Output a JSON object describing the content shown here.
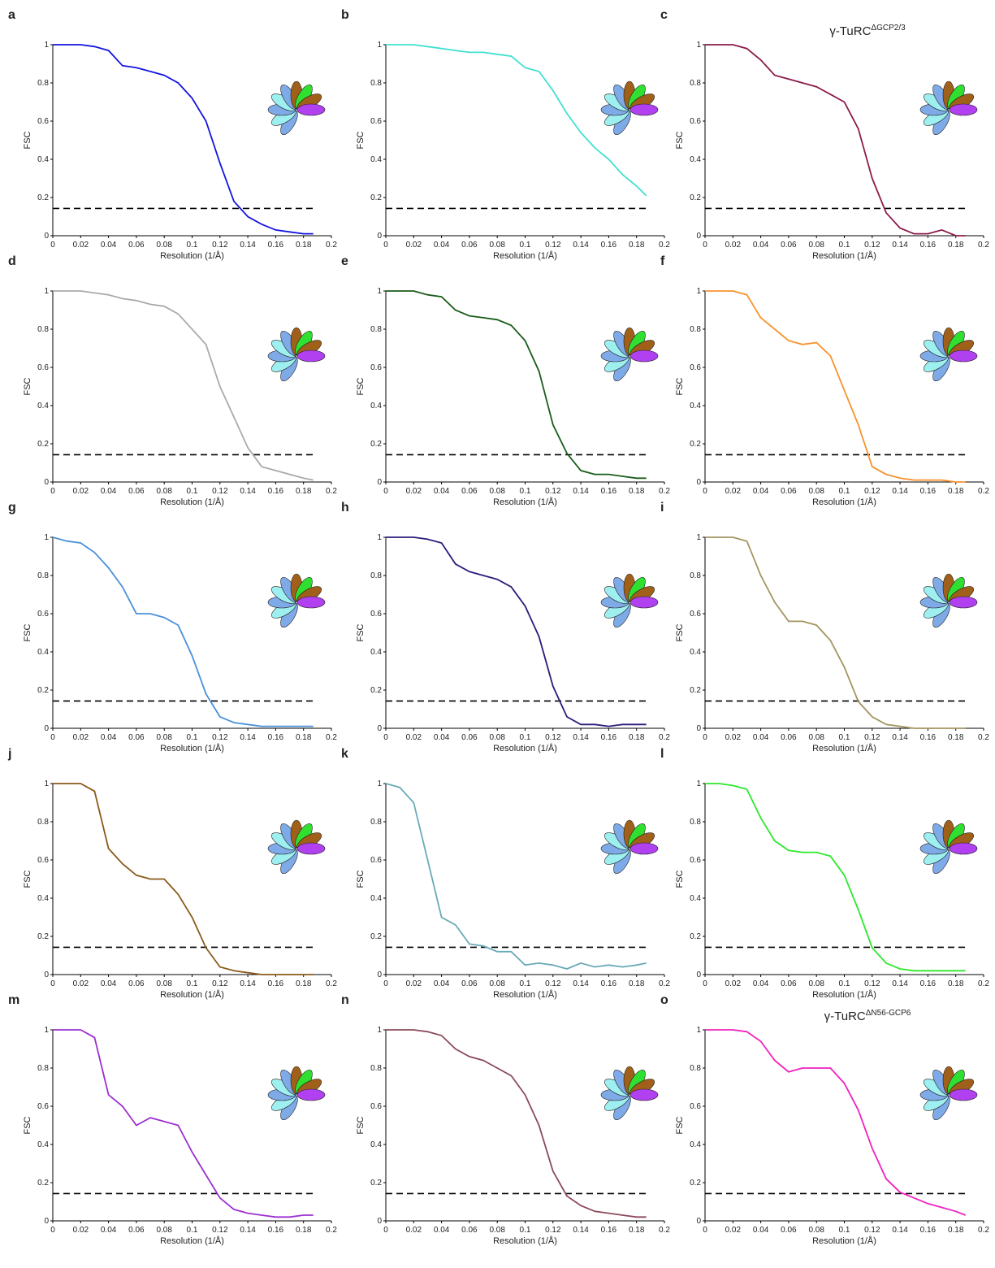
{
  "chart_data": [
    {
      "type": "line",
      "panel": "a",
      "ylabel": "FSC",
      "xlabel": "Resolution (1/Å)",
      "xlim": [
        0,
        0.2
      ],
      "ylim": [
        0,
        1
      ],
      "xticks": [
        0,
        0.02,
        0.04,
        0.06,
        0.08,
        0.1,
        0.12,
        0.14,
        0.16,
        0.18,
        0.2
      ],
      "yticks": [
        0,
        0.2,
        0.4,
        0.6,
        0.8,
        1
      ],
      "hline": 0.143,
      "color": "#1414e0",
      "x": [
        0,
        0.01,
        0.02,
        0.03,
        0.04,
        0.05,
        0.06,
        0.07,
        0.08,
        0.09,
        0.1,
        0.11,
        0.12,
        0.13,
        0.14,
        0.15,
        0.16,
        0.17,
        0.18,
        0.187
      ],
      "values": [
        1,
        1,
        1,
        0.99,
        0.97,
        0.89,
        0.88,
        0.86,
        0.84,
        0.8,
        0.72,
        0.6,
        0.38,
        0.18,
        0.1,
        0.06,
        0.03,
        0.02,
        0.01,
        0.01
      ]
    },
    {
      "type": "line",
      "panel": "b",
      "ylabel": "FSC",
      "xlabel": "Resolution (1/Å)",
      "xlim": [
        0,
        0.2
      ],
      "ylim": [
        0,
        1
      ],
      "xticks": [
        0,
        0.02,
        0.04,
        0.06,
        0.08,
        0.1,
        0.12,
        0.14,
        0.16,
        0.18,
        0.2
      ],
      "yticks": [
        0,
        0.2,
        0.4,
        0.6,
        0.8,
        1
      ],
      "hline": 0.143,
      "color": "#40e0d0",
      "x": [
        0,
        0.01,
        0.02,
        0.03,
        0.04,
        0.05,
        0.06,
        0.07,
        0.08,
        0.09,
        0.1,
        0.11,
        0.12,
        0.13,
        0.14,
        0.15,
        0.16,
        0.17,
        0.18,
        0.187
      ],
      "values": [
        1,
        1,
        1,
        0.99,
        0.98,
        0.97,
        0.96,
        0.96,
        0.95,
        0.94,
        0.88,
        0.86,
        0.76,
        0.64,
        0.54,
        0.46,
        0.4,
        0.32,
        0.26,
        0.21
      ]
    },
    {
      "type": "line",
      "panel": "c",
      "title": "γ-TuRC",
      "title_superscript": "ΔGCP2/3",
      "ylabel": "FSC",
      "xlabel": "Resolution (1/Å)",
      "xlim": [
        0,
        0.2
      ],
      "ylim": [
        0,
        1
      ],
      "xticks": [
        0,
        0.02,
        0.04,
        0.06,
        0.08,
        0.1,
        0.12,
        0.14,
        0.16,
        0.18,
        0.2
      ],
      "yticks": [
        0,
        0.2,
        0.4,
        0.6,
        0.8,
        1
      ],
      "hline": 0.143,
      "color": "#8b1a4a",
      "x": [
        0,
        0.01,
        0.02,
        0.03,
        0.04,
        0.05,
        0.06,
        0.07,
        0.08,
        0.09,
        0.1,
        0.11,
        0.12,
        0.13,
        0.14,
        0.15,
        0.16,
        0.17,
        0.18,
        0.187
      ],
      "values": [
        1,
        1,
        1,
        0.98,
        0.92,
        0.84,
        0.82,
        0.8,
        0.78,
        0.74,
        0.7,
        0.56,
        0.3,
        0.12,
        0.04,
        0.01,
        0.01,
        0.03,
        0,
        0
      ]
    },
    {
      "type": "line",
      "panel": "d",
      "ylabel": "FSC",
      "xlabel": "Resolution (1/Å)",
      "xlim": [
        0,
        0.2
      ],
      "ylim": [
        0,
        1
      ],
      "xticks": [
        0,
        0.02,
        0.04,
        0.06,
        0.08,
        0.1,
        0.12,
        0.14,
        0.16,
        0.18,
        0.2
      ],
      "yticks": [
        0,
        0.2,
        0.4,
        0.6,
        0.8,
        1
      ],
      "hline": 0.143,
      "color": "#aaaaaa",
      "x": [
        0,
        0.01,
        0.02,
        0.03,
        0.04,
        0.05,
        0.06,
        0.07,
        0.08,
        0.09,
        0.1,
        0.11,
        0.12,
        0.13,
        0.14,
        0.15,
        0.16,
        0.17,
        0.18,
        0.187
      ],
      "values": [
        1,
        1,
        1,
        0.99,
        0.98,
        0.96,
        0.95,
        0.93,
        0.92,
        0.88,
        0.8,
        0.72,
        0.5,
        0.34,
        0.18,
        0.08,
        0.06,
        0.04,
        0.02,
        0.01
      ]
    },
    {
      "type": "line",
      "panel": "e",
      "ylabel": "FSC",
      "xlabel": "Resolution (1/Å)",
      "xlim": [
        0,
        0.2
      ],
      "ylim": [
        0,
        1
      ],
      "xticks": [
        0,
        0.02,
        0.04,
        0.06,
        0.08,
        0.1,
        0.12,
        0.14,
        0.16,
        0.18,
        0.2
      ],
      "yticks": [
        0,
        0.2,
        0.4,
        0.6,
        0.8,
        1
      ],
      "hline": 0.143,
      "color": "#1a5c1a",
      "x": [
        0,
        0.01,
        0.02,
        0.03,
        0.04,
        0.05,
        0.06,
        0.07,
        0.08,
        0.09,
        0.1,
        0.11,
        0.12,
        0.13,
        0.14,
        0.15,
        0.16,
        0.17,
        0.18,
        0.187
      ],
      "values": [
        1,
        1,
        1,
        0.98,
        0.97,
        0.9,
        0.87,
        0.86,
        0.85,
        0.82,
        0.74,
        0.58,
        0.3,
        0.15,
        0.06,
        0.04,
        0.04,
        0.03,
        0.02,
        0.02
      ]
    },
    {
      "type": "line",
      "panel": "f",
      "ylabel": "FSC",
      "xlabel": "Resolution (1/Å)",
      "xlim": [
        0,
        0.2
      ],
      "ylim": [
        0,
        1
      ],
      "xticks": [
        0,
        0.02,
        0.04,
        0.06,
        0.08,
        0.1,
        0.12,
        0.14,
        0.16,
        0.18,
        0.2
      ],
      "yticks": [
        0,
        0.2,
        0.4,
        0.6,
        0.8,
        1
      ],
      "hline": 0.143,
      "color": "#f7922e",
      "x": [
        0,
        0.01,
        0.02,
        0.03,
        0.04,
        0.05,
        0.06,
        0.07,
        0.08,
        0.09,
        0.1,
        0.11,
        0.12,
        0.13,
        0.14,
        0.15,
        0.16,
        0.17,
        0.18,
        0.187
      ],
      "values": [
        1,
        1,
        1,
        0.98,
        0.86,
        0.8,
        0.74,
        0.72,
        0.73,
        0.66,
        0.48,
        0.3,
        0.08,
        0.04,
        0.02,
        0.01,
        0.01,
        0.01,
        0,
        0
      ]
    },
    {
      "type": "line",
      "panel": "g",
      "ylabel": "FSC",
      "xlabel": "Resolution (1/Å)",
      "xlim": [
        0,
        0.2
      ],
      "ylim": [
        0,
        1
      ],
      "xticks": [
        0,
        0.02,
        0.04,
        0.06,
        0.08,
        0.1,
        0.12,
        0.14,
        0.16,
        0.18,
        0.2
      ],
      "yticks": [
        0,
        0.2,
        0.4,
        0.6,
        0.8,
        1
      ],
      "hline": 0.143,
      "color": "#4a90d9",
      "x": [
        0,
        0.01,
        0.02,
        0.03,
        0.04,
        0.05,
        0.06,
        0.07,
        0.08,
        0.09,
        0.1,
        0.11,
        0.12,
        0.13,
        0.14,
        0.15,
        0.16,
        0.17,
        0.18,
        0.187
      ],
      "values": [
        1,
        0.98,
        0.97,
        0.92,
        0.84,
        0.74,
        0.6,
        0.6,
        0.58,
        0.54,
        0.38,
        0.18,
        0.06,
        0.03,
        0.02,
        0.01,
        0.01,
        0.01,
        0.01,
        0.01
      ]
    },
    {
      "type": "line",
      "panel": "h",
      "ylabel": "FSC",
      "xlabel": "Resolution (1/Å)",
      "xlim": [
        0,
        0.2
      ],
      "ylim": [
        0,
        1
      ],
      "xticks": [
        0,
        0.02,
        0.04,
        0.06,
        0.08,
        0.1,
        0.12,
        0.14,
        0.16,
        0.18,
        0.2
      ],
      "yticks": [
        0,
        0.2,
        0.4,
        0.6,
        0.8,
        1
      ],
      "hline": 0.143,
      "color": "#2e1a7a",
      "x": [
        0,
        0.01,
        0.02,
        0.03,
        0.04,
        0.05,
        0.06,
        0.07,
        0.08,
        0.09,
        0.1,
        0.11,
        0.12,
        0.13,
        0.14,
        0.15,
        0.16,
        0.17,
        0.18,
        0.187
      ],
      "values": [
        1,
        1,
        1,
        0.99,
        0.97,
        0.86,
        0.82,
        0.8,
        0.78,
        0.74,
        0.64,
        0.48,
        0.22,
        0.06,
        0.02,
        0.02,
        0.01,
        0.02,
        0.02,
        0.02
      ]
    },
    {
      "type": "line",
      "panel": "i",
      "ylabel": "FSC",
      "xlabel": "Resolution (1/Å)",
      "xlim": [
        0,
        0.2
      ],
      "ylim": [
        0,
        1
      ],
      "xticks": [
        0,
        0.02,
        0.04,
        0.06,
        0.08,
        0.1,
        0.12,
        0.14,
        0.16,
        0.18,
        0.2
      ],
      "yticks": [
        0,
        0.2,
        0.4,
        0.6,
        0.8,
        1
      ],
      "hline": 0.143,
      "color": "#a39560",
      "x": [
        0,
        0.01,
        0.02,
        0.03,
        0.04,
        0.05,
        0.06,
        0.07,
        0.08,
        0.09,
        0.1,
        0.11,
        0.12,
        0.13,
        0.14,
        0.15,
        0.16,
        0.17,
        0.18,
        0.187
      ],
      "values": [
        1,
        1,
        1,
        0.98,
        0.8,
        0.66,
        0.56,
        0.56,
        0.54,
        0.46,
        0.32,
        0.14,
        0.06,
        0.02,
        0.01,
        0,
        0,
        0,
        0,
        0
      ]
    },
    {
      "type": "line",
      "panel": "j",
      "ylabel": "FSC",
      "xlabel": "Resolution (1/Å)",
      "xlim": [
        0,
        0.2
      ],
      "ylim": [
        0,
        1
      ],
      "xticks": [
        0,
        0.02,
        0.04,
        0.06,
        0.08,
        0.1,
        0.12,
        0.14,
        0.16,
        0.18,
        0.2
      ],
      "yticks": [
        0,
        0.2,
        0.4,
        0.6,
        0.8,
        1
      ],
      "hline": 0.143,
      "color": "#8b5a1a",
      "x": [
        0,
        0.01,
        0.02,
        0.03,
        0.04,
        0.05,
        0.06,
        0.07,
        0.08,
        0.09,
        0.1,
        0.11,
        0.12,
        0.13,
        0.14,
        0.15,
        0.16,
        0.17,
        0.18,
        0.187
      ],
      "values": [
        1,
        1,
        1,
        0.96,
        0.66,
        0.58,
        0.52,
        0.5,
        0.5,
        0.42,
        0.3,
        0.14,
        0.04,
        0.02,
        0.01,
        0,
        0,
        0,
        0,
        0
      ]
    },
    {
      "type": "line",
      "panel": "k",
      "ylabel": "FSC",
      "xlabel": "Resolution (1/Å)",
      "xlim": [
        0,
        0.2
      ],
      "ylim": [
        0,
        1
      ],
      "xticks": [
        0,
        0.02,
        0.04,
        0.06,
        0.08,
        0.1,
        0.12,
        0.14,
        0.16,
        0.18,
        0.2
      ],
      "yticks": [
        0,
        0.2,
        0.4,
        0.6,
        0.8,
        1
      ],
      "hline": 0.143,
      "color": "#6aaab8",
      "x": [
        0,
        0.01,
        0.02,
        0.03,
        0.04,
        0.05,
        0.06,
        0.07,
        0.08,
        0.09,
        0.1,
        0.11,
        0.12,
        0.13,
        0.14,
        0.15,
        0.16,
        0.17,
        0.18,
        0.187
      ],
      "values": [
        1,
        0.98,
        0.9,
        0.6,
        0.3,
        0.26,
        0.16,
        0.15,
        0.12,
        0.12,
        0.05,
        0.06,
        0.05,
        0.03,
        0.06,
        0.04,
        0.05,
        0.04,
        0.05,
        0.06
      ]
    },
    {
      "type": "line",
      "panel": "l",
      "ylabel": "FSC",
      "xlabel": "Resolution (1/Å)",
      "xlim": [
        0,
        0.2
      ],
      "ylim": [
        0,
        1
      ],
      "xticks": [
        0,
        0.02,
        0.04,
        0.06,
        0.08,
        0.1,
        0.12,
        0.14,
        0.16,
        0.18,
        0.2
      ],
      "yticks": [
        0,
        0.2,
        0.4,
        0.6,
        0.8,
        1
      ],
      "hline": 0.143,
      "color": "#2de82d",
      "x": [
        0,
        0.01,
        0.02,
        0.03,
        0.04,
        0.05,
        0.06,
        0.07,
        0.08,
        0.09,
        0.1,
        0.11,
        0.12,
        0.13,
        0.14,
        0.15,
        0.16,
        0.17,
        0.18,
        0.187
      ],
      "values": [
        1,
        1,
        0.99,
        0.97,
        0.82,
        0.7,
        0.65,
        0.64,
        0.64,
        0.62,
        0.52,
        0.34,
        0.14,
        0.06,
        0.03,
        0.02,
        0.02,
        0.02,
        0.02,
        0.02
      ]
    },
    {
      "type": "line",
      "panel": "m",
      "ylabel": "FSC",
      "xlabel": "Resolution (1/Å)",
      "xlim": [
        0,
        0.2
      ],
      "ylim": [
        0,
        1
      ],
      "xticks": [
        0,
        0.02,
        0.04,
        0.06,
        0.08,
        0.1,
        0.12,
        0.14,
        0.16,
        0.18,
        0.2
      ],
      "yticks": [
        0,
        0.2,
        0.4,
        0.6,
        0.8,
        1
      ],
      "hline": 0.143,
      "color": "#9b30d0",
      "x": [
        0,
        0.01,
        0.02,
        0.03,
        0.04,
        0.05,
        0.06,
        0.07,
        0.08,
        0.09,
        0.1,
        0.11,
        0.12,
        0.13,
        0.14,
        0.15,
        0.16,
        0.17,
        0.18,
        0.187
      ],
      "values": [
        1,
        1,
        1,
        0.96,
        0.66,
        0.6,
        0.5,
        0.54,
        0.52,
        0.5,
        0.36,
        0.24,
        0.12,
        0.06,
        0.04,
        0.03,
        0.02,
        0.02,
        0.03,
        0.03
      ]
    },
    {
      "type": "line",
      "panel": "n",
      "ylabel": "FSC",
      "xlabel": "Resolution (1/Å)",
      "xlim": [
        0,
        0.2
      ],
      "ylim": [
        0,
        1
      ],
      "xticks": [
        0,
        0.02,
        0.04,
        0.06,
        0.08,
        0.1,
        0.12,
        0.14,
        0.16,
        0.18,
        0.2
      ],
      "yticks": [
        0,
        0.2,
        0.4,
        0.6,
        0.8,
        1
      ],
      "hline": 0.143,
      "color": "#8b4a5a",
      "x": [
        0,
        0.01,
        0.02,
        0.03,
        0.04,
        0.05,
        0.06,
        0.07,
        0.08,
        0.09,
        0.1,
        0.11,
        0.12,
        0.13,
        0.14,
        0.15,
        0.16,
        0.17,
        0.18,
        0.187
      ],
      "values": [
        1,
        1,
        1,
        0.99,
        0.97,
        0.9,
        0.86,
        0.84,
        0.8,
        0.76,
        0.66,
        0.5,
        0.26,
        0.13,
        0.08,
        0.05,
        0.04,
        0.03,
        0.02,
        0.02
      ]
    },
    {
      "type": "line",
      "panel": "o",
      "title": "γ-TuRC",
      "title_superscript": "ΔN56-GCP6",
      "ylabel": "FSC",
      "xlabel": "Resolution (1/Å)",
      "xlim": [
        0,
        0.2
      ],
      "ylim": [
        0,
        1
      ],
      "xticks": [
        0,
        0.02,
        0.04,
        0.06,
        0.08,
        0.1,
        0.12,
        0.14,
        0.16,
        0.18,
        0.2
      ],
      "yticks": [
        0,
        0.2,
        0.4,
        0.6,
        0.8,
        1
      ],
      "hline": 0.143,
      "color": "#f020c0",
      "x": [
        0,
        0.01,
        0.02,
        0.03,
        0.04,
        0.05,
        0.06,
        0.07,
        0.08,
        0.09,
        0.1,
        0.11,
        0.12,
        0.13,
        0.14,
        0.15,
        0.16,
        0.17,
        0.18,
        0.187
      ],
      "values": [
        1,
        1,
        1,
        0.99,
        0.94,
        0.84,
        0.78,
        0.8,
        0.8,
        0.8,
        0.72,
        0.58,
        0.38,
        0.22,
        0.15,
        0.12,
        0.09,
        0.07,
        0.05,
        0.03
      ]
    }
  ]
}
